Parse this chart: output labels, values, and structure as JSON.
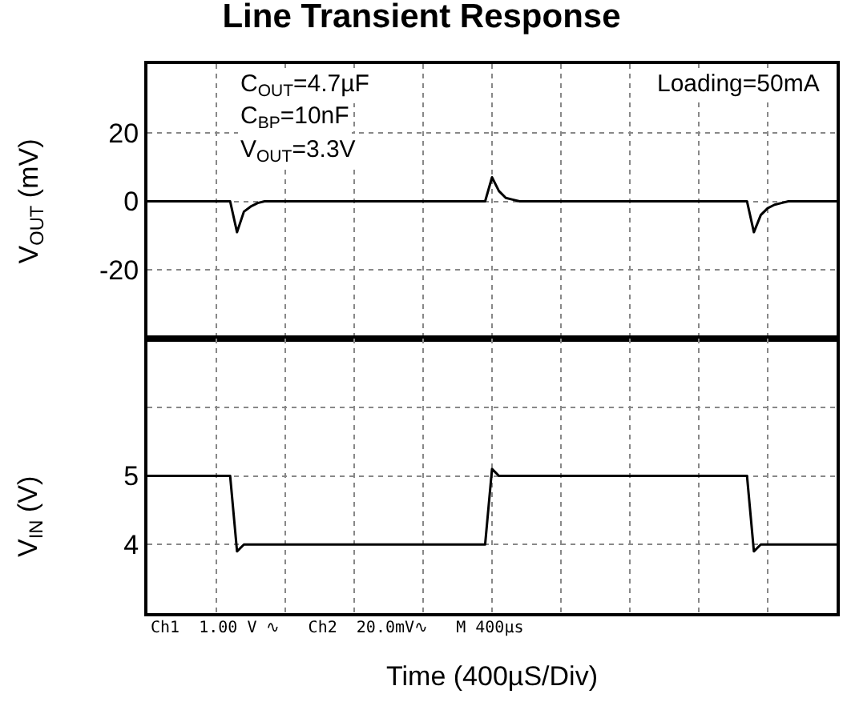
{
  "chart_data": [
    {
      "type": "line",
      "title": "Line Transient Response",
      "ylabel": "V$_{OUT}$ (mV)",
      "categories": [
        null,
        null,
        null,
        null,
        null,
        null,
        null,
        null,
        null,
        null,
        null,
        null,
        null,
        null,
        null,
        null,
        null,
        null,
        null,
        null,
        null,
        null,
        null,
        null,
        null,
        null,
        null,
        null,
        null,
        null,
        null,
        null,
        null,
        null,
        null,
        null,
        null,
        null,
        null,
        null,
        null,
        null,
        null,
        null,
        null,
        null,
        null,
        null,
        null,
        null,
        null,
        null,
        null,
        null,
        null,
        null,
        null,
        null,
        null,
        null,
        null,
        null,
        null,
        null,
        null,
        null,
        null,
        null,
        null,
        null,
        null,
        null,
        null,
        null,
        null,
        null,
        null,
        null,
        null,
        null,
        null,
        null,
        null,
        null,
        null,
        null,
        null,
        null,
        null,
        null,
        null,
        null,
        null,
        null,
        null,
        null,
        null,
        null,
        null,
        null,
        null
      ],
      "series": [
        {
          "color": "#000000",
          "values": [
            0,
            0,
            0,
            0,
            0,
            0,
            0,
            0,
            0,
            0,
            0,
            0,
            0,
            -9,
            -3,
            -1.5,
            -0.5,
            0,
            0,
            0,
            0,
            0,
            0,
            0,
            0,
            0,
            0,
            0,
            0,
            0,
            0,
            0,
            0,
            0,
            0,
            0,
            0,
            0,
            0,
            0,
            0,
            0,
            0,
            0,
            0,
            0,
            0,
            0,
            0,
            0,
            7,
            3,
            1,
            0.5,
            0,
            0,
            0,
            0,
            0,
            0,
            0,
            0,
            0,
            0,
            0,
            0,
            0,
            0,
            0,
            0,
            0,
            0,
            0,
            0,
            0,
            0,
            0,
            0,
            0,
            0,
            0,
            0,
            0,
            0,
            0,
            0,
            0,
            0,
            -9,
            -4,
            -2,
            -1,
            -0.5,
            0,
            0,
            0,
            0,
            0,
            0,
            0,
            0
          ]
        }
      ],
      "ylim": [
        -40,
        40
      ],
      "yticks": [
        {
          "value": -40,
          "label": null
        },
        -20,
        0,
        20
      ],
      "tick_labels": "y",
      "grid": true,
      "line_style": "solid",
      "marker": "none",
      "annotations": [
        "C$_{OUT}$=4.7µF",
        "C$_{BP}$=10nF",
        "V$_{OUT}$=3.3V",
        "Loading=50mA"
      ]
    },
    {
      "type": "line",
      "xlabel": "Time (400µS/Div)",
      "ylabel": "V$_{IN}$ (V)",
      "categories": [
        null,
        null,
        null,
        null,
        null,
        null,
        null,
        null,
        null,
        null,
        null,
        null,
        null,
        null,
        null,
        null,
        null,
        null,
        null,
        null,
        null,
        null,
        null,
        null,
        null,
        null,
        null,
        null,
        null,
        null,
        null,
        null,
        null,
        null,
        null,
        null,
        null,
        null,
        null,
        null,
        null,
        null,
        null,
        null,
        null,
        null,
        null,
        null,
        null,
        null,
        null,
        null,
        null,
        null,
        null,
        null,
        null,
        null,
        null,
        null,
        null,
        null,
        null,
        null,
        null,
        null,
        null,
        null,
        null,
        null,
        null,
        null,
        null,
        null,
        null,
        null,
        null,
        null,
        null,
        null,
        null,
        null,
        null,
        null,
        null,
        null,
        null,
        null,
        null,
        null,
        null,
        null,
        null,
        null,
        null,
        null,
        null,
        null,
        null,
        null,
        null
      ],
      "series": [
        {
          "color": "#000000",
          "values": [
            5,
            5,
            5,
            5,
            5,
            5,
            5,
            5,
            5,
            5,
            5,
            5,
            5,
            3.9,
            4,
            4,
            4,
            4,
            4,
            4,
            4,
            4,
            4,
            4,
            4,
            4,
            4,
            4,
            4,
            4,
            4,
            4,
            4,
            4,
            4,
            4,
            4,
            4,
            4,
            4,
            4,
            4,
            4,
            4,
            4,
            4,
            4,
            4,
            4,
            4,
            5.1,
            5,
            5,
            5,
            5,
            5,
            5,
            5,
            5,
            5,
            5,
            5,
            5,
            5,
            5,
            5,
            5,
            5,
            5,
            5,
            5,
            5,
            5,
            5,
            5,
            5,
            5,
            5,
            5,
            5,
            5,
            5,
            5,
            5,
            5,
            5,
            5,
            5,
            3.9,
            4,
            4,
            4,
            4,
            4,
            4,
            4,
            4,
            4,
            4,
            4,
            4
          ]
        }
      ],
      "ylim": [
        3,
        7
      ],
      "yticks": [
        4,
        5,
        {
          "value": 6,
          "label": null
        }
      ],
      "tick_labels": "y",
      "grid": true,
      "line_style": "solid",
      "marker": "none",
      "annotations": [
        "Ch1  1.00 V ∿   Ch2  20.0mV∿   M 400µs"
      ]
    }
  ]
}
